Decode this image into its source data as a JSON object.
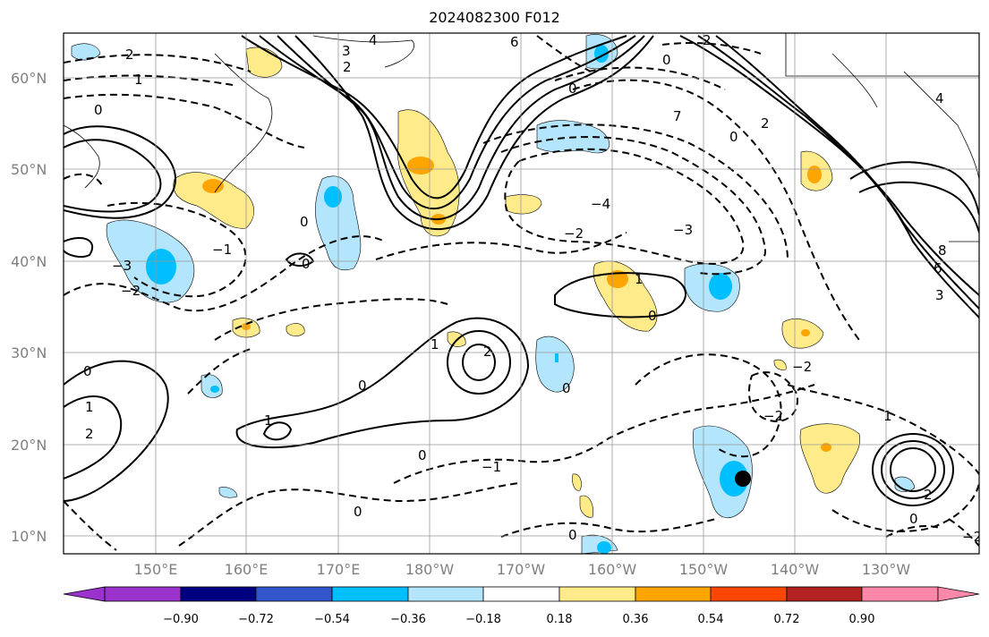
{
  "title": "2024082300 F012",
  "lat_labels": [
    "60°N",
    "50°N",
    "40°N",
    "30°N",
    "20°N",
    "10°N"
  ],
  "lon_labels": [
    "150°E",
    "160°E",
    "170°E",
    "180°W",
    "170°W",
    "160°W",
    "150°W",
    "140°W",
    "130°W"
  ],
  "colorbar": {
    "ticks": [
      "−0.90",
      "−0.72",
      "−0.54",
      "−0.36",
      "−0.18",
      "0.18",
      "0.36",
      "0.54",
      "0.72",
      "0.90"
    ],
    "colors": [
      "#9933cc",
      "#000080",
      "#3355cc",
      "#00bfff",
      "#b3e5fc",
      "#ffffff",
      "#ffeb8a",
      "#ffa500",
      "#ff4500",
      "#b22222",
      "#ff88aa",
      "#ff88aa"
    ]
  },
  "contour_labels": [
    "2",
    "1",
    "0",
    "−1",
    "−2",
    "−3",
    "−4",
    "3",
    "4",
    "5",
    "6",
    "7",
    "8"
  ],
  "marker": "black-dot"
}
